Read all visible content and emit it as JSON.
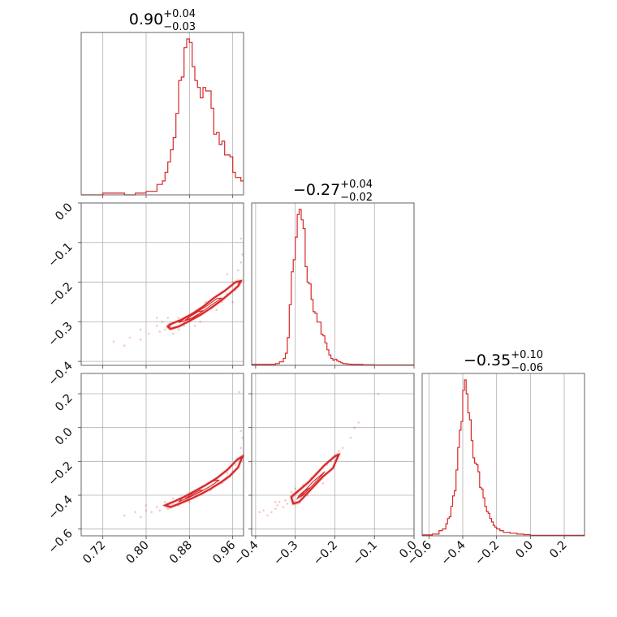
{
  "colors": {
    "accent": "#d62728",
    "frame": "#555555",
    "grid": "#b0b0b0"
  },
  "chart_data": {
    "type": "corner",
    "grid": true,
    "parameters": [
      {
        "title_value": "0.90",
        "err_plus": "+0.04",
        "err_minus": "−0.03",
        "range": [
          0.68,
          0.98
        ]
      },
      {
        "title_value": "−0.27",
        "err_plus": "+0.04",
        "err_minus": "−0.02",
        "range": [
          -0.41,
          0.0
        ]
      },
      {
        "title_value": "−0.35",
        "err_plus": "+0.10",
        "err_minus": "−0.06",
        "range": [
          -0.64,
          0.32
        ]
      }
    ],
    "ticks": {
      "p0": {
        "values": [
          0.72,
          0.8,
          0.88,
          0.96
        ],
        "labels": [
          "0.72",
          "0.80",
          "0.88",
          "0.96"
        ]
      },
      "p1": {
        "values": [
          -0.4,
          -0.3,
          -0.2,
          -0.1,
          0.0
        ],
        "labels": [
          "−0.4",
          "−0.3",
          "−0.2",
          "−0.1",
          "0.0"
        ]
      },
      "p1y": {
        "values": [
          -0.4,
          -0.3,
          -0.2,
          -0.1,
          0.0
        ],
        "labels": [
          "−0.4",
          "−0.3",
          "−0.2",
          "−0.1",
          "0.0"
        ]
      },
      "p2": {
        "values": [
          -0.6,
          -0.4,
          -0.2,
          0.0,
          0.2
        ],
        "labels": [
          "−0.6",
          "−0.4",
          "−0.2",
          "0.0",
          "0.2"
        ]
      },
      "p2y": {
        "values": [
          -0.6,
          -0.4,
          -0.2,
          0.0,
          0.2
        ],
        "labels": [
          "−0.6",
          "−0.4",
          "−0.2",
          "0.0",
          "0.2"
        ]
      }
    },
    "hist_p0": {
      "edges": [
        0.68,
        0.7,
        0.72,
        0.74,
        0.76,
        0.78,
        0.8,
        0.82,
        0.83,
        0.835,
        0.84,
        0.845,
        0.85,
        0.855,
        0.86,
        0.865,
        0.87,
        0.875,
        0.88,
        0.885,
        0.89,
        0.895,
        0.9,
        0.905,
        0.91,
        0.915,
        0.92,
        0.925,
        0.93,
        0.935,
        0.94,
        0.945,
        0.95,
        0.955,
        0.96,
        0.965,
        0.97,
        0.975,
        0.98
      ],
      "counts": [
        0,
        0,
        0.01,
        0.01,
        0,
        0.01,
        0.02,
        0.06,
        0.08,
        0.13,
        0.19,
        0.26,
        0.33,
        0.47,
        0.66,
        0.68,
        0.85,
        0.9,
        0.88,
        0.74,
        0.66,
        0.62,
        0.56,
        0.62,
        0.6,
        0.6,
        0.5,
        0.35,
        0.36,
        0.29,
        0.31,
        0.23,
        0.23,
        0.22,
        0.13,
        0.1,
        0.1,
        0.08
      ]
    },
    "hist_p1": {
      "edges": [
        -0.41,
        -0.35,
        -0.34,
        -0.33,
        -0.325,
        -0.32,
        -0.315,
        -0.31,
        -0.305,
        -0.3,
        -0.295,
        -0.29,
        -0.285,
        -0.28,
        -0.275,
        -0.27,
        -0.265,
        -0.26,
        -0.255,
        -0.25,
        -0.245,
        -0.24,
        -0.235,
        -0.23,
        -0.225,
        -0.22,
        -0.215,
        -0.21,
        -0.205,
        -0.2,
        -0.195,
        -0.19,
        -0.185,
        -0.18,
        -0.175,
        -0.17,
        -0.16,
        -0.15,
        -0.13,
        -0.1,
        0.0
      ],
      "counts": [
        0.005,
        0.01,
        0.02,
        0.04,
        0.07,
        0.16,
        0.35,
        0.54,
        0.61,
        0.74,
        0.87,
        0.9,
        0.84,
        0.79,
        0.57,
        0.48,
        0.47,
        0.38,
        0.31,
        0.3,
        0.25,
        0.25,
        0.18,
        0.17,
        0.13,
        0.09,
        0.06,
        0.04,
        0.03,
        0.035,
        0.025,
        0.02,
        0.015,
        0.01,
        0.01,
        0.007,
        0.005,
        0.005,
        0.003,
        0.002
      ]
    },
    "hist_p2": {
      "edges": [
        -0.64,
        -0.58,
        -0.54,
        -0.52,
        -0.5,
        -0.49,
        -0.48,
        -0.47,
        -0.46,
        -0.45,
        -0.44,
        -0.43,
        -0.42,
        -0.41,
        -0.4,
        -0.39,
        -0.38,
        -0.37,
        -0.36,
        -0.35,
        -0.34,
        -0.33,
        -0.32,
        -0.31,
        -0.3,
        -0.29,
        -0.28,
        -0.27,
        -0.26,
        -0.25,
        -0.24,
        -0.23,
        -0.22,
        -0.21,
        -0.2,
        -0.18,
        -0.16,
        -0.12,
        -0.08,
        -0.04,
        0.0,
        0.32
      ],
      "counts": [
        0.005,
        0.01,
        0.03,
        0.04,
        0.07,
        0.1,
        0.11,
        0.17,
        0.23,
        0.26,
        0.38,
        0.51,
        0.61,
        0.66,
        0.84,
        0.9,
        0.82,
        0.71,
        0.67,
        0.55,
        0.45,
        0.42,
        0.41,
        0.37,
        0.28,
        0.27,
        0.22,
        0.17,
        0.14,
        0.13,
        0.1,
        0.08,
        0.06,
        0.05,
        0.04,
        0.03,
        0.02,
        0.015,
        0.01,
        0.007,
        0.003
      ]
    },
    "scatter_01": {
      "contour_main": [
        [
          0.84,
          -0.312
        ],
        [
          0.845,
          -0.318
        ],
        [
          0.86,
          -0.312
        ],
        [
          0.88,
          -0.298
        ],
        [
          0.9,
          -0.283
        ],
        [
          0.92,
          -0.265
        ],
        [
          0.94,
          -0.245
        ],
        [
          0.955,
          -0.228
        ],
        [
          0.97,
          -0.21
        ],
        [
          0.975,
          -0.197
        ],
        [
          0.965,
          -0.2
        ],
        [
          0.945,
          -0.222
        ],
        [
          0.925,
          -0.24
        ],
        [
          0.905,
          -0.262
        ],
        [
          0.885,
          -0.28
        ],
        [
          0.865,
          -0.295
        ],
        [
          0.845,
          -0.306
        ],
        [
          0.84,
          -0.312
        ]
      ],
      "contour_inner": [
        [
          0.86,
          -0.302
        ],
        [
          0.88,
          -0.294
        ],
        [
          0.9,
          -0.278
        ],
        [
          0.92,
          -0.258
        ],
        [
          0.94,
          -0.24
        ],
        [
          0.93,
          -0.242
        ],
        [
          0.91,
          -0.262
        ],
        [
          0.89,
          -0.278
        ],
        [
          0.87,
          -0.293
        ],
        [
          0.86,
          -0.302
        ]
      ],
      "contour_core": [
        [
          0.872,
          -0.296
        ],
        [
          0.89,
          -0.288
        ],
        [
          0.905,
          -0.272
        ],
        [
          0.897,
          -0.274
        ],
        [
          0.882,
          -0.286
        ],
        [
          0.872,
          -0.296
        ]
      ],
      "points": [
        [
          0.74,
          -0.35
        ],
        [
          0.77,
          -0.34
        ],
        [
          0.79,
          -0.32
        ],
        [
          0.805,
          -0.33
        ],
        [
          0.82,
          -0.31
        ],
        [
          0.825,
          -0.325
        ],
        [
          0.83,
          -0.3
        ],
        [
          0.835,
          -0.32
        ],
        [
          0.84,
          -0.29
        ],
        [
          0.85,
          -0.33
        ],
        [
          0.86,
          -0.29
        ],
        [
          0.87,
          -0.31
        ],
        [
          0.9,
          -0.3
        ],
        [
          0.93,
          -0.27
        ],
        [
          0.95,
          -0.23
        ],
        [
          0.96,
          -0.2
        ],
        [
          0.97,
          -0.17
        ],
        [
          0.975,
          -0.15
        ],
        [
          0.978,
          -0.13
        ],
        [
          0.975,
          -0.09
        ],
        [
          0.96,
          -0.25
        ],
        [
          0.94,
          -0.25
        ],
        [
          0.91,
          -0.25
        ],
        [
          0.89,
          -0.31
        ],
        [
          0.86,
          -0.32
        ],
        [
          0.95,
          -0.18
        ],
        [
          0.965,
          -0.22
        ],
        [
          0.82,
          -0.29
        ],
        [
          0.79,
          -0.345
        ],
        [
          0.76,
          -0.36
        ]
      ]
    },
    "scatter_02": {
      "contour_main": [
        [
          0.835,
          -0.46
        ],
        [
          0.845,
          -0.47
        ],
        [
          0.86,
          -0.452
        ],
        [
          0.88,
          -0.425
        ],
        [
          0.9,
          -0.395
        ],
        [
          0.92,
          -0.36
        ],
        [
          0.94,
          -0.32
        ],
        [
          0.955,
          -0.285
        ],
        [
          0.97,
          -0.235
        ],
        [
          0.978,
          -0.17
        ],
        [
          0.968,
          -0.19
        ],
        [
          0.95,
          -0.25
        ],
        [
          0.93,
          -0.3
        ],
        [
          0.91,
          -0.34
        ],
        [
          0.89,
          -0.375
        ],
        [
          0.87,
          -0.41
        ],
        [
          0.85,
          -0.44
        ],
        [
          0.835,
          -0.46
        ]
      ],
      "contour_inner": [
        [
          0.86,
          -0.44
        ],
        [
          0.88,
          -0.412
        ],
        [
          0.9,
          -0.38
        ],
        [
          0.92,
          -0.345
        ],
        [
          0.935,
          -0.31
        ],
        [
          0.925,
          -0.315
        ],
        [
          0.905,
          -0.35
        ],
        [
          0.885,
          -0.385
        ],
        [
          0.868,
          -0.415
        ],
        [
          0.86,
          -0.44
        ]
      ],
      "contour_core": [
        [
          0.872,
          -0.42
        ],
        [
          0.89,
          -0.394
        ],
        [
          0.905,
          -0.37
        ],
        [
          0.898,
          -0.372
        ],
        [
          0.882,
          -0.398
        ],
        [
          0.872,
          -0.42
        ]
      ],
      "points": [
        [
          0.76,
          -0.52
        ],
        [
          0.78,
          -0.5
        ],
        [
          0.8,
          -0.49
        ],
        [
          0.81,
          -0.5
        ],
        [
          0.82,
          -0.47
        ],
        [
          0.825,
          -0.49
        ],
        [
          0.835,
          -0.44
        ],
        [
          0.84,
          -0.48
        ],
        [
          0.86,
          -0.46
        ],
        [
          0.88,
          -0.44
        ],
        [
          0.9,
          -0.37
        ],
        [
          0.93,
          -0.31
        ],
        [
          0.95,
          -0.27
        ],
        [
          0.965,
          -0.22
        ],
        [
          0.975,
          -0.12
        ],
        [
          0.978,
          -0.06
        ],
        [
          0.975,
          -0.02
        ],
        [
          0.972,
          0.21
        ],
        [
          0.96,
          -0.26
        ],
        [
          0.94,
          -0.33
        ],
        [
          0.92,
          -0.37
        ],
        [
          0.85,
          -0.42
        ],
        [
          0.8,
          -0.46
        ],
        [
          0.79,
          -0.53
        ]
      ]
    },
    "scatter_12": {
      "contour_main": [
        [
          -0.31,
          -0.41
        ],
        [
          -0.305,
          -0.45
        ],
        [
          -0.29,
          -0.44
        ],
        [
          -0.27,
          -0.39
        ],
        [
          -0.25,
          -0.34
        ],
        [
          -0.23,
          -0.29
        ],
        [
          -0.205,
          -0.24
        ],
        [
          -0.19,
          -0.16
        ],
        [
          -0.2,
          -0.17
        ],
        [
          -0.225,
          -0.22
        ],
        [
          -0.245,
          -0.27
        ],
        [
          -0.265,
          -0.32
        ],
        [
          -0.285,
          -0.36
        ],
        [
          -0.3,
          -0.39
        ],
        [
          -0.31,
          -0.41
        ]
      ],
      "contour_inner": [
        [
          -0.295,
          -0.42
        ],
        [
          -0.28,
          -0.4
        ],
        [
          -0.26,
          -0.35
        ],
        [
          -0.24,
          -0.3
        ],
        [
          -0.225,
          -0.26
        ],
        [
          -0.235,
          -0.28
        ],
        [
          -0.255,
          -0.32
        ],
        [
          -0.275,
          -0.37
        ],
        [
          -0.29,
          -0.4
        ],
        [
          -0.295,
          -0.42
        ]
      ],
      "contour_core": [
        [
          -0.29,
          -0.41
        ],
        [
          -0.275,
          -0.385
        ],
        [
          -0.262,
          -0.355
        ],
        [
          -0.27,
          -0.365
        ],
        [
          -0.282,
          -0.39
        ],
        [
          -0.29,
          -0.41
        ]
      ],
      "points": [
        [
          -0.39,
          -0.5
        ],
        [
          -0.37,
          -0.52
        ],
        [
          -0.36,
          -0.5
        ],
        [
          -0.35,
          -0.48
        ],
        [
          -0.345,
          -0.46
        ],
        [
          -0.34,
          -0.44
        ],
        [
          -0.33,
          -0.47
        ],
        [
          -0.325,
          -0.43
        ],
        [
          -0.32,
          -0.45
        ],
        [
          -0.31,
          -0.38
        ],
        [
          -0.3,
          -0.36
        ],
        [
          -0.28,
          -0.34
        ],
        [
          -0.26,
          -0.3
        ],
        [
          -0.24,
          -0.26
        ],
        [
          -0.22,
          -0.22
        ],
        [
          -0.2,
          -0.17
        ],
        [
          -0.18,
          -0.12
        ],
        [
          -0.16,
          -0.06
        ],
        [
          -0.15,
          0.0
        ],
        [
          -0.14,
          0.03
        ],
        [
          -0.09,
          0.2
        ],
        [
          -0.23,
          -0.33
        ],
        [
          -0.27,
          -0.4
        ],
        [
          -0.25,
          -0.34
        ],
        [
          -0.21,
          -0.2
        ],
        [
          -0.19,
          -0.14
        ],
        [
          -0.35,
          -0.44
        ],
        [
          -0.38,
          -0.49
        ]
      ]
    }
  }
}
